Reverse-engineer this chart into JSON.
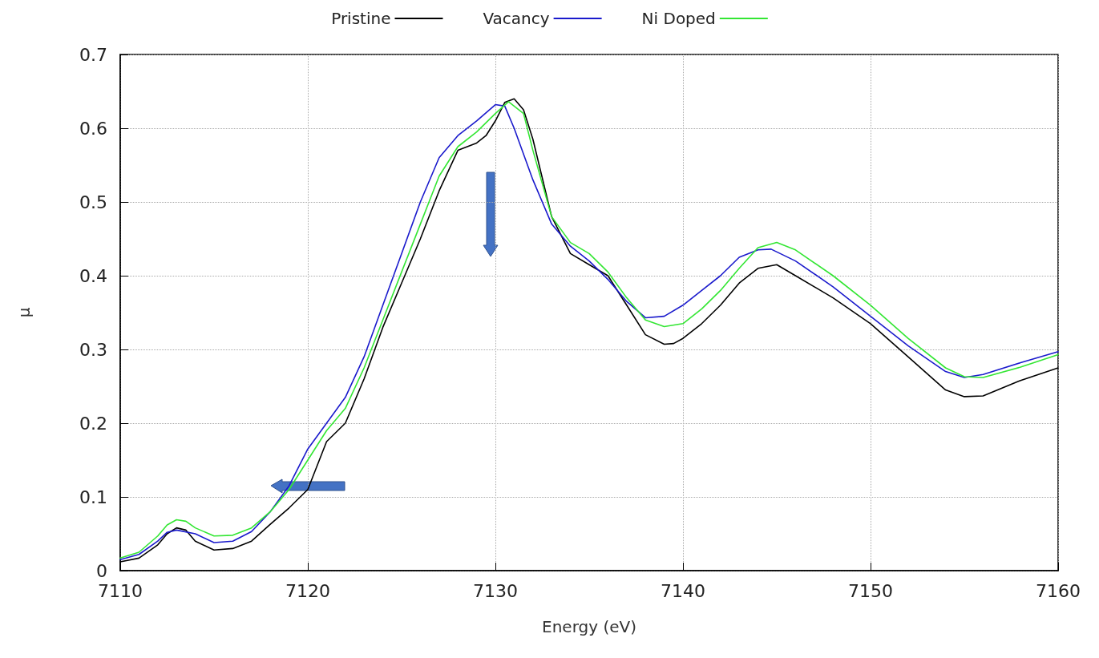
{
  "chart_data": {
    "type": "line",
    "xlabel": "Energy (eV)",
    "ylabel": "μ",
    "xlim": [
      7110,
      7160
    ],
    "xticks": [
      7110,
      7120,
      7130,
      7140,
      7150,
      7160
    ],
    "ylim": [
      0,
      0.7
    ],
    "yticks": [
      0,
      0.1,
      0.2,
      0.3,
      0.4,
      0.5,
      0.6,
      0.7
    ],
    "grid": true,
    "legend": "top",
    "marker": "none",
    "line_style": "solid",
    "series": [
      {
        "name": "Pristine",
        "color": "#000000",
        "x": [
          7110,
          7111,
          7112,
          7112.5,
          7113,
          7113.5,
          7114,
          7115,
          7116,
          7117,
          7118,
          7119,
          7120,
          7121,
          7122,
          7123,
          7124,
          7125,
          7126,
          7127,
          7128,
          7129,
          7129.5,
          7130,
          7130.5,
          7131,
          7131.5,
          7132,
          7133,
          7134,
          7135,
          7136,
          7137,
          7138,
          7139,
          7139.5,
          7140,
          7141,
          7142,
          7143,
          7144,
          7145,
          7146,
          7148,
          7150,
          7152,
          7154,
          7155,
          7156,
          7158,
          7160
        ],
        "values": [
          0.012,
          0.017,
          0.035,
          0.05,
          0.058,
          0.055,
          0.04,
          0.028,
          0.03,
          0.04,
          0.063,
          0.085,
          0.11,
          0.175,
          0.2,
          0.26,
          0.33,
          0.39,
          0.45,
          0.515,
          0.57,
          0.58,
          0.59,
          0.61,
          0.635,
          0.64,
          0.625,
          0.585,
          0.48,
          0.43,
          0.415,
          0.4,
          0.36,
          0.32,
          0.307,
          0.308,
          0.315,
          0.335,
          0.36,
          0.39,
          0.41,
          0.415,
          0.4,
          0.37,
          0.335,
          0.29,
          0.245,
          0.236,
          0.237,
          0.258,
          0.275
        ]
      },
      {
        "name": "Vacancy",
        "color": "#1a1acc",
        "x": [
          7110,
          7111,
          7112,
          7112.5,
          7113,
          7114,
          7115,
          7116,
          7117,
          7118,
          7119,
          7120,
          7121,
          7122,
          7123,
          7124,
          7125,
          7126,
          7127,
          7128,
          7129,
          7130,
          7130.5,
          7131,
          7132,
          7133,
          7134,
          7135,
          7136,
          7137,
          7138,
          7139,
          7140,
          7141,
          7142,
          7143,
          7144,
          7144.7,
          7146,
          7148,
          7150,
          7152,
          7154,
          7155,
          7156,
          7158,
          7160
        ],
        "values": [
          0.015,
          0.022,
          0.04,
          0.052,
          0.055,
          0.05,
          0.038,
          0.04,
          0.053,
          0.08,
          0.115,
          0.165,
          0.2,
          0.235,
          0.29,
          0.36,
          0.43,
          0.5,
          0.56,
          0.59,
          0.61,
          0.632,
          0.63,
          0.6,
          0.53,
          0.47,
          0.44,
          0.42,
          0.395,
          0.365,
          0.343,
          0.345,
          0.36,
          0.38,
          0.4,
          0.425,
          0.435,
          0.436,
          0.42,
          0.385,
          0.345,
          0.305,
          0.27,
          0.262,
          0.266,
          0.282,
          0.297
        ]
      },
      {
        "name": "Ni Doped",
        "color": "#33e633",
        "x": [
          7110,
          7111,
          7112,
          7112.5,
          7113,
          7113.5,
          7114,
          7115,
          7116,
          7117,
          7118,
          7119,
          7120,
          7121,
          7122,
          7123,
          7124,
          7125,
          7126,
          7127,
          7128,
          7129,
          7130,
          7130.7,
          7131.5,
          7132,
          7133,
          7134,
          7135,
          7136,
          7137,
          7138,
          7139,
          7140,
          7141,
          7142,
          7143,
          7144,
          7145,
          7146,
          7148,
          7150,
          7152,
          7154,
          7155,
          7156,
          7158,
          7160
        ],
        "values": [
          0.017,
          0.025,
          0.047,
          0.062,
          0.069,
          0.067,
          0.058,
          0.047,
          0.048,
          0.058,
          0.08,
          0.11,
          0.15,
          0.19,
          0.22,
          0.275,
          0.34,
          0.405,
          0.47,
          0.535,
          0.575,
          0.595,
          0.62,
          0.636,
          0.62,
          0.57,
          0.48,
          0.445,
          0.43,
          0.405,
          0.37,
          0.34,
          0.331,
          0.335,
          0.355,
          0.38,
          0.41,
          0.438,
          0.445,
          0.435,
          0.4,
          0.36,
          0.315,
          0.275,
          0.263,
          0.262,
          0.276,
          0.293
        ]
      }
    ]
  }
}
